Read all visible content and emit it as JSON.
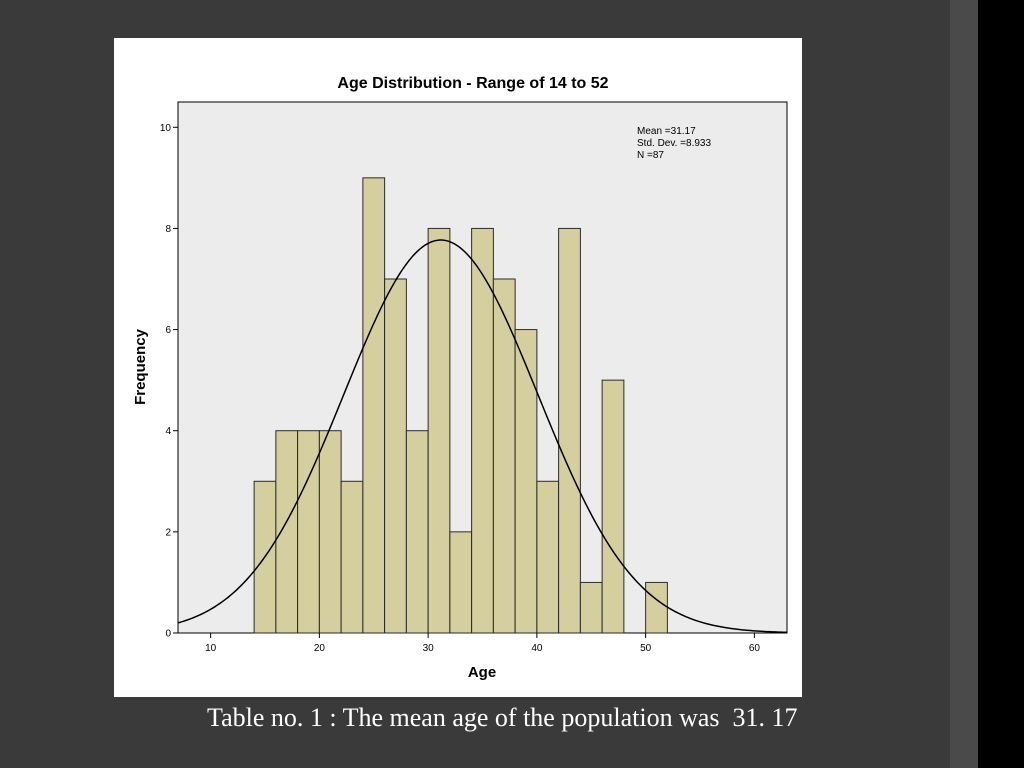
{
  "caption": "Table no. 1 : The mean age of the population was  31. 17",
  "chart_data": {
    "type": "bar",
    "title": "Age Distribution - Range of 14 to 52",
    "xlabel": "Age",
    "ylabel": "Frequency",
    "xlim": [
      7,
      63
    ],
    "ylim": [
      0,
      10.5
    ],
    "x_ticks": [
      10,
      20,
      30,
      40,
      50,
      60
    ],
    "y_ticks": [
      0,
      2,
      4,
      6,
      8,
      10
    ],
    "bin_width": 2,
    "bins": [
      {
        "start": 14,
        "end": 16,
        "value": 3
      },
      {
        "start": 16,
        "end": 18,
        "value": 4
      },
      {
        "start": 18,
        "end": 20,
        "value": 4
      },
      {
        "start": 20,
        "end": 22,
        "value": 4
      },
      {
        "start": 22,
        "end": 24,
        "value": 3
      },
      {
        "start": 24,
        "end": 26,
        "value": 9
      },
      {
        "start": 26,
        "end": 28,
        "value": 7
      },
      {
        "start": 28,
        "end": 30,
        "value": 4
      },
      {
        "start": 30,
        "end": 32,
        "value": 8
      },
      {
        "start": 32,
        "end": 34,
        "value": 2
      },
      {
        "start": 34,
        "end": 36,
        "value": 8
      },
      {
        "start": 36,
        "end": 38,
        "value": 7
      },
      {
        "start": 38,
        "end": 40,
        "value": 6
      },
      {
        "start": 40,
        "end": 42,
        "value": 3
      },
      {
        "start": 42,
        "end": 44,
        "value": 8
      },
      {
        "start": 44,
        "end": 46,
        "value": 1
      },
      {
        "start": 46,
        "end": 48,
        "value": 5
      },
      {
        "start": 48,
        "end": 50,
        "value": 0
      },
      {
        "start": 50,
        "end": 52,
        "value": 1
      }
    ],
    "normal_curve": {
      "mean": 31.17,
      "sd": 8.933,
      "n": 87
    },
    "stats_box": {
      "mean_text": "Mean =31.17",
      "sd_text": "Std. Dev. =8.933",
      "n_text": "N =87"
    },
    "grid": false,
    "colors": {
      "bar_fill": "#d5cfa0",
      "bar_stroke": "#2a2a2a",
      "plot_bg": "#ececec",
      "curve": "#000000"
    }
  }
}
